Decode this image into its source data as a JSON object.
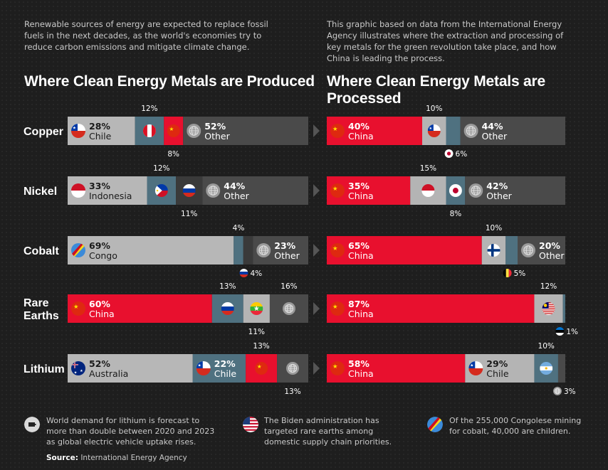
{
  "intro": {
    "left_lines": [
      "Renewable sources of energy are expected to replace fossil",
      "fuels in the next decades, as the world's economies try to",
      "reduce carbon emissions and mitigate climate change."
    ],
    "right_lines": [
      "This graphic based on data from the International Energy",
      "Agency illustrates where the extraction and processing of",
      "key metals for the green revolution take place, and how",
      "China is leading the process."
    ]
  },
  "panels": {
    "produced_title": "Where Clean Energy Metals are Produced",
    "processed_title": "Where Clean Energy Metals are Processed"
  },
  "colors": {
    "china": "#e8102e",
    "country_gray": "#b4b4b4",
    "steel_blue": "#4f7180",
    "other_dark": "#4a4a4a",
    "background": "#1e1e1e"
  },
  "chart_data": [
    {
      "type": "bar",
      "stacked": true,
      "orientation": "horizontal",
      "title": "Where Clean Energy Metals are Produced",
      "metals": [
        "Copper",
        "Nickel",
        "Cobalt",
        "Rare Earths",
        "Lithium"
      ],
      "rows": [
        {
          "metal": "Copper",
          "segments": [
            {
              "country": "Chile",
              "value": 28,
              "label": "28%",
              "flag": "chile-flag-icon",
              "color": "#b4b4b4"
            },
            {
              "country": "Peru",
              "value": 12,
              "label": "12%",
              "flag": "peru-flag-icon",
              "color": "#4f7180",
              "label_pos": "above"
            },
            {
              "country": "China",
              "value": 8,
              "label": "8%",
              "flag": "china-flag-icon",
              "color": "#e8102e",
              "label_pos": "below"
            },
            {
              "country": "Other",
              "value": 52,
              "label": "52%",
              "flag": "globe-icon",
              "color": "#4a4a4a"
            }
          ]
        },
        {
          "metal": "Nickel",
          "segments": [
            {
              "country": "Indonesia",
              "value": 33,
              "label": "33%",
              "flag": "indonesia-flag-icon",
              "color": "#b4b4b4"
            },
            {
              "country": "Philippines",
              "value": 12,
              "label": "12%",
              "flag": "philippines-flag-icon",
              "color": "#4f7180",
              "label_pos": "above"
            },
            {
              "country": "Russia",
              "value": 11,
              "label": "11%",
              "flag": "russia-flag-icon",
              "color": "#3a3a3a",
              "label_pos": "below"
            },
            {
              "country": "Other",
              "value": 44,
              "label": "44%",
              "flag": "globe-icon",
              "color": "#4a4a4a"
            }
          ]
        },
        {
          "metal": "Cobalt",
          "segments": [
            {
              "country": "Congo",
              "value": 69,
              "label": "69%",
              "flag": "congo-flag-icon",
              "color": "#b4b4b4"
            },
            {
              "country": "Australia",
              "value": 4,
              "label": "4%",
              "flag": "australia-flag-icon",
              "color": "#4f7180",
              "label_pos": "above"
            },
            {
              "country": "Russia",
              "value": 4,
              "label": "4%",
              "flag": "russia-flag-icon",
              "color": "#3a3a3a",
              "label_pos": "below"
            },
            {
              "country": "Other",
              "value": 23,
              "label": "23%",
              "flag": "globe-icon",
              "color": "#4a4a4a"
            }
          ]
        },
        {
          "metal": "Rare Earths",
          "segments": [
            {
              "country": "China",
              "value": 60,
              "label": "60%",
              "flag": "china-flag-icon",
              "color": "#e8102e"
            },
            {
              "country": "Russia",
              "value": 13,
              "label": "13%",
              "flag": "russia-flag-icon",
              "color": "#4f7180",
              "label_pos": "above"
            },
            {
              "country": "Myanmar",
              "value": 11,
              "label": "11%",
              "flag": "myanmar-flag-icon",
              "color": "#b4b4b4",
              "label_pos": "below"
            },
            {
              "country": "Other",
              "value": 16,
              "label": "16%",
              "flag": "globe-icon",
              "color": "#4a4a4a",
              "label_pos": "above"
            }
          ]
        },
        {
          "metal": "Lithium",
          "segments": [
            {
              "country": "Australia",
              "value": 52,
              "label": "52%",
              "flag": "australia-flag-icon",
              "color": "#b4b4b4"
            },
            {
              "country": "Chile",
              "value": 22,
              "label": "22%",
              "flag": "chile-flag-icon",
              "color": "#4f7180"
            },
            {
              "country": "China",
              "value": 13,
              "label": "13%",
              "flag": "china-flag-icon",
              "color": "#e8102e",
              "label_pos": "above"
            },
            {
              "country": "Other",
              "value": 13,
              "label": "13%",
              "flag": "globe-icon",
              "color": "#4a4a4a",
              "label_pos": "below"
            }
          ]
        }
      ]
    },
    {
      "type": "bar",
      "stacked": true,
      "orientation": "horizontal",
      "title": "Where Clean Energy Metals are Processed",
      "metals": [
        "Copper",
        "Nickel",
        "Cobalt",
        "Rare Earths",
        "Lithium"
      ],
      "rows": [
        {
          "metal": "Copper",
          "segments": [
            {
              "country": "China",
              "value": 40,
              "label": "40%",
              "flag": "china-flag-icon",
              "color": "#e8102e"
            },
            {
              "country": "Chile",
              "value": 10,
              "label": "10%",
              "flag": "chile-flag-icon",
              "color": "#b4b4b4",
              "label_pos": "above"
            },
            {
              "country": "Japan",
              "value": 6,
              "label": "6%",
              "flag": "japan-flag-icon",
              "color": "#4f7180",
              "label_pos": "below"
            },
            {
              "country": "Other",
              "value": 44,
              "label": "44%",
              "flag": "globe-icon",
              "color": "#4a4a4a"
            }
          ]
        },
        {
          "metal": "Nickel",
          "segments": [
            {
              "country": "China",
              "value": 35,
              "label": "35%",
              "flag": "china-flag-icon",
              "color": "#e8102e"
            },
            {
              "country": "Indonesia",
              "value": 15,
              "label": "15%",
              "flag": "indonesia-flag-icon",
              "color": "#b4b4b4",
              "label_pos": "above"
            },
            {
              "country": "Japan",
              "value": 8,
              "label": "8%",
              "flag": "japan-flag-icon",
              "color": "#4f7180",
              "label_pos": "below"
            },
            {
              "country": "Other",
              "value": 42,
              "label": "42%",
              "flag": "globe-icon",
              "color": "#4a4a4a"
            }
          ]
        },
        {
          "metal": "Cobalt",
          "segments": [
            {
              "country": "China",
              "value": 65,
              "label": "65%",
              "flag": "china-flag-icon",
              "color": "#e8102e"
            },
            {
              "country": "Finland",
              "value": 10,
              "label": "10%",
              "flag": "finland-flag-icon",
              "color": "#b4b4b4",
              "label_pos": "above"
            },
            {
              "country": "Belgium",
              "value": 5,
              "label": "5%",
              "flag": "belgium-flag-icon",
              "color": "#4f7180",
              "label_pos": "below"
            },
            {
              "country": "Other",
              "value": 20,
              "label": "20%",
              "flag": "globe-icon",
              "color": "#4a4a4a"
            }
          ]
        },
        {
          "metal": "Rare Earths",
          "segments": [
            {
              "country": "China",
              "value": 87,
              "label": "87%",
              "flag": "china-flag-icon",
              "color": "#e8102e"
            },
            {
              "country": "Malaysia",
              "value": 12,
              "label": "12%",
              "flag": "malaysia-flag-icon",
              "color": "#b4b4b4",
              "label_pos": "above"
            },
            {
              "country": "Estonia",
              "value": 1,
              "label": "1%",
              "flag": "estonia-flag-icon",
              "color": "#4f7180",
              "label_pos": "below"
            }
          ]
        },
        {
          "metal": "Lithium",
          "segments": [
            {
              "country": "China",
              "value": 58,
              "label": "58%",
              "flag": "china-flag-icon",
              "color": "#e8102e"
            },
            {
              "country": "Chile",
              "value": 29,
              "label": "29%",
              "flag": "chile-flag-icon",
              "color": "#b4b4b4"
            },
            {
              "country": "Argentina",
              "value": 10,
              "label": "10%",
              "flag": "argentina-flag-icon",
              "color": "#4f7180",
              "label_pos": "above"
            },
            {
              "country": "Other",
              "value": 3,
              "label": "3%",
              "flag": "globe-icon",
              "color": "#4a4a4a",
              "label_pos": "below"
            }
          ]
        }
      ]
    }
  ],
  "footnotes": [
    {
      "icon": "lithium-battery-icon",
      "lines": [
        "World demand for lithium is forecast to",
        "more than double between 2020 and 2023",
        "as global electric vehicle uptake rises."
      ]
    },
    {
      "icon": "usa-flag-icon",
      "lines": [
        "The Biden administration has",
        "targeted rare earths among",
        "domestic supply chain priorities."
      ]
    },
    {
      "icon": "congo-flag-icon",
      "lines": [
        "Of the 255,000 Congolese mining",
        "for cobalt, 40,000 are children."
      ]
    }
  ],
  "source": {
    "label": "Source:",
    "text": " International Energy Agency"
  }
}
